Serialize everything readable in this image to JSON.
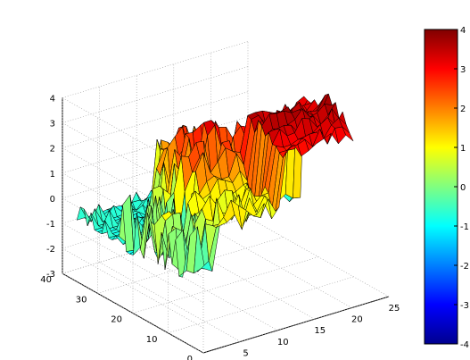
{
  "chart_data": {
    "type": "surface",
    "title": "",
    "xlabel": "",
    "ylabel": "",
    "zlabel": "",
    "x_ticks": [
      "0",
      "5",
      "10",
      "15",
      "20",
      "25"
    ],
    "y_ticks": [
      "0",
      "10",
      "20",
      "30",
      "40"
    ],
    "z_ticks": [
      "-3",
      "-2",
      "-1",
      "0",
      "1",
      "2",
      "3",
      "4"
    ],
    "xlim": [
      0,
      25
    ],
    "ylim": [
      0,
      40
    ],
    "zlim": [
      -3,
      4
    ],
    "grid": true,
    "colormap": "jet",
    "colorbar": {
      "range": [
        -4,
        4
      ],
      "ticks": [
        "-4",
        "-3",
        "-2",
        "-1",
        "0",
        "1",
        "2",
        "3",
        "4"
      ]
    },
    "surface": {
      "x_range": [
        1,
        24
      ],
      "y_range": [
        8,
        38
      ],
      "note_regions": [
        {
          "x": [
            1,
            8
          ],
          "y": [
            26,
            38
          ],
          "z_approx": -0.8
        },
        {
          "x": [
            6,
            14
          ],
          "y": [
            15,
            30
          ],
          "z_approx": 2.5
        },
        {
          "x": [
            10,
            14
          ],
          "y": [
            20,
            27
          ],
          "z_approx": 3.2
        },
        {
          "x": [
            14,
            24
          ],
          "y": [
            8,
            22
          ],
          "z_approx": 3.5
        }
      ]
    }
  },
  "colors": {
    "colorbar_stops": [
      "#00008f",
      "#0000ff",
      "#0080ff",
      "#00ffff",
      "#80ff80",
      "#ffff00",
      "#ff8000",
      "#ff0000",
      "#800000"
    ]
  }
}
